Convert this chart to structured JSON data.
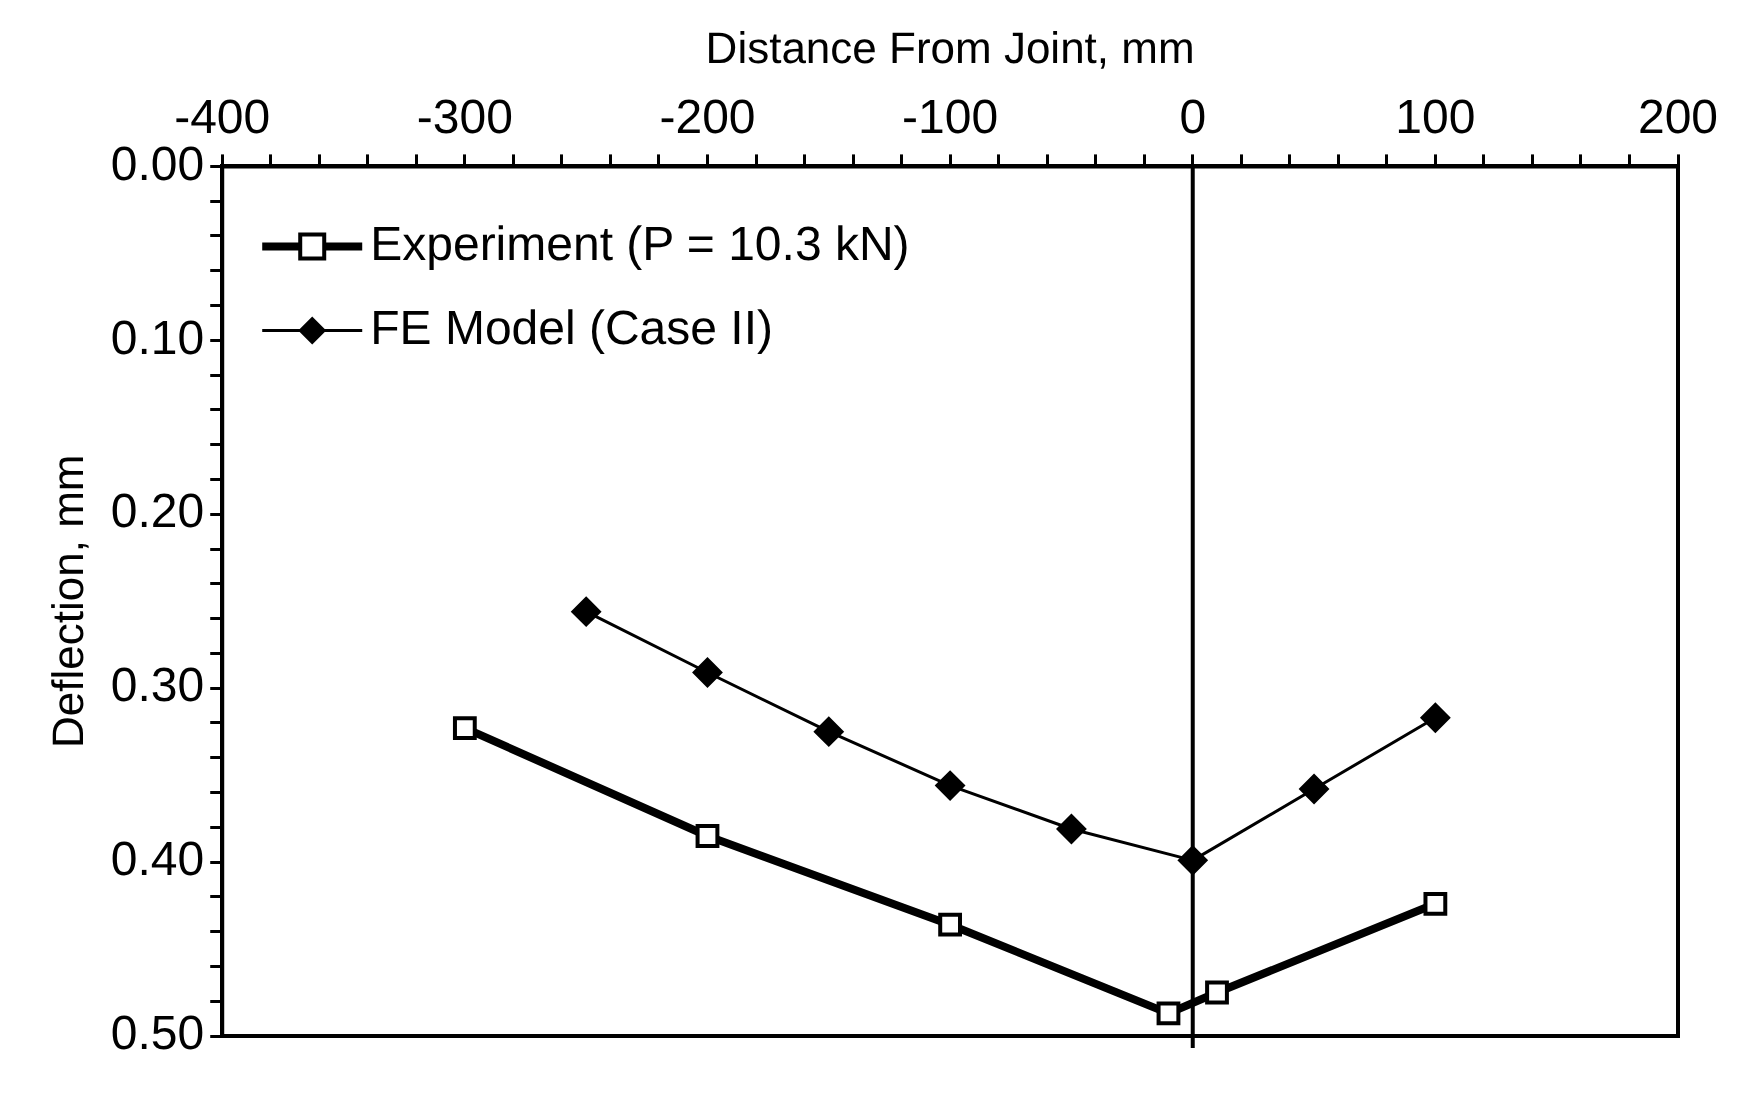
{
  "chart_data": {
    "type": "line",
    "xlabel": "Distance From Joint, mm",
    "ylabel": "Deflection, mm",
    "xlim": [
      -400,
      200
    ],
    "xticks": [
      -400,
      {
        "value": -380,
        "label": null
      },
      {
        "value": -360,
        "label": null
      },
      {
        "value": -340,
        "label": null
      },
      {
        "value": -320,
        "label": null
      },
      -300,
      {
        "value": -280,
        "label": null
      },
      {
        "value": -260,
        "label": null
      },
      {
        "value": -240,
        "label": null
      },
      {
        "value": -220,
        "label": null
      },
      -200,
      {
        "value": -180,
        "label": null
      },
      {
        "value": -160,
        "label": null
      },
      {
        "value": -140,
        "label": null
      },
      {
        "value": -120,
        "label": null
      },
      -100,
      {
        "value": -80,
        "label": null
      },
      {
        "value": -60,
        "label": null
      },
      {
        "value": -40,
        "label": null
      },
      {
        "value": -20,
        "label": null
      },
      0,
      {
        "value": 20,
        "label": null
      },
      {
        "value": 40,
        "label": null
      },
      {
        "value": 60,
        "label": null
      },
      {
        "value": 80,
        "label": null
      },
      100,
      {
        "value": 120,
        "label": null
      },
      {
        "value": 140,
        "label": null
      },
      {
        "value": 160,
        "label": null
      },
      {
        "value": 180,
        "label": null
      },
      200
    ],
    "ylim": [
      0.5,
      0.0
    ],
    "yticks": [
      {
        "value": 0,
        "label": "0.00"
      },
      {
        "value": 0.02,
        "label": null
      },
      {
        "value": 0.04,
        "label": null
      },
      {
        "value": 0.06,
        "label": null
      },
      {
        "value": 0.08,
        "label": null
      },
      {
        "value": 0.1,
        "label": "0.10"
      },
      {
        "value": 0.12,
        "label": null
      },
      {
        "value": 0.14,
        "label": null
      },
      {
        "value": 0.16,
        "label": null
      },
      {
        "value": 0.18,
        "label": null
      },
      {
        "value": 0.2,
        "label": "0.20"
      },
      {
        "value": 0.22,
        "label": null
      },
      {
        "value": 0.24,
        "label": null
      },
      {
        "value": 0.26,
        "label": null
      },
      {
        "value": 0.28,
        "label": null
      },
      {
        "value": 0.3,
        "label": "0.30"
      },
      {
        "value": 0.32,
        "label": null
      },
      {
        "value": 0.34,
        "label": null
      },
      {
        "value": 0.36,
        "label": null
      },
      {
        "value": 0.38,
        "label": null
      },
      {
        "value": 0.4,
        "label": "0.40"
      },
      {
        "value": 0.42,
        "label": null
      },
      {
        "value": 0.44,
        "label": null
      },
      {
        "value": 0.46,
        "label": null
      },
      {
        "value": 0.48,
        "label": null
      },
      {
        "value": 0.5,
        "label": "0.50"
      }
    ],
    "grid": false,
    "legend": "top left",
    "line_style": "solid",
    "ref_lines": [
      {
        "axis": "x",
        "value": 0,
        "color": "#000000"
      }
    ],
    "series": [
      {
        "name": "Experiment (P = 10.3 kN)",
        "color": "#000000",
        "marker": "square",
        "x": [
          -300,
          -200,
          -100,
          -10,
          10,
          100
        ],
        "values": [
          0.323,
          0.385,
          0.436,
          0.487,
          0.475,
          0.424
        ]
      },
      {
        "name": "FE Model (Case II)",
        "color": "#000000",
        "marker": "diamond",
        "x": [
          -250,
          -200,
          -150,
          -100,
          -50,
          0,
          50,
          100
        ],
        "values": [
          0.256,
          0.291,
          0.325,
          0.356,
          0.381,
          0.399,
          0.358,
          0.317
        ]
      }
    ]
  }
}
